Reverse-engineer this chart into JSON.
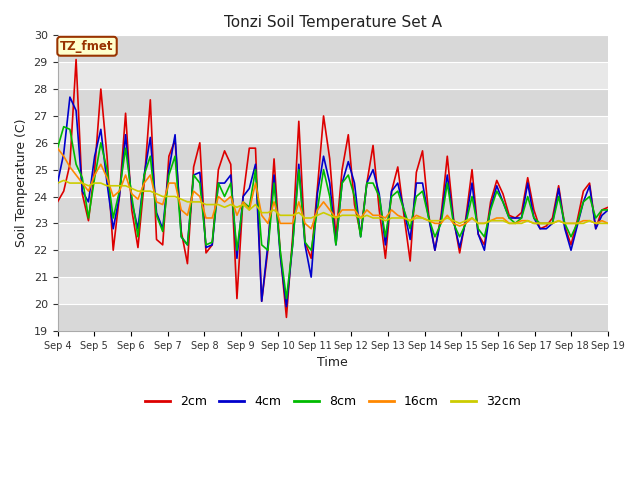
{
  "title": "Tonzi Soil Temperature Set A",
  "xlabel": "Time",
  "ylabel": "Soil Temperature (C)",
  "ylim": [
    19.0,
    30.0
  ],
  "yticks": [
    19.0,
    20.0,
    21.0,
    22.0,
    23.0,
    24.0,
    25.0,
    26.0,
    27.0,
    28.0,
    29.0,
    30.0
  ],
  "xtick_labels": [
    "Sep 4",
    "Sep 5",
    "Sep 6",
    "Sep 7",
    "Sep 8",
    "Sep 9",
    "Sep 10",
    "Sep 11",
    "Sep 12",
    "Sep 13",
    "Sep 14",
    "Sep 15",
    "Sep 16",
    "Sep 17",
    "Sep 18",
    "Sep 19"
  ],
  "label_box": "TZ_fmet",
  "label_box_facecolor": "#ffffcc",
  "label_box_edgecolor": "#993300",
  "plot_bg_color": "#e8e8e8",
  "band_color_dark": "#d8d8d8",
  "band_color_light": "#e8e8e8",
  "fig_bg_color": "#ffffff",
  "lines": {
    "2cm": {
      "color": "#dd0000",
      "linewidth": 1.2
    },
    "4cm": {
      "color": "#0000cc",
      "linewidth": 1.2
    },
    "8cm": {
      "color": "#00bb00",
      "linewidth": 1.2
    },
    "16cm": {
      "color": "#ff8800",
      "linewidth": 1.2
    },
    "32cm": {
      "color": "#cccc00",
      "linewidth": 1.2
    }
  },
  "data_2cm": [
    23.8,
    24.2,
    25.2,
    29.1,
    24.1,
    23.1,
    25.0,
    28.0,
    25.5,
    22.0,
    24.0,
    27.1,
    23.5,
    22.1,
    24.5,
    27.6,
    22.4,
    22.2,
    25.5,
    26.1,
    22.7,
    21.5,
    25.1,
    26.0,
    21.9,
    22.2,
    25.0,
    25.7,
    25.2,
    20.2,
    24.0,
    25.8,
    25.8,
    20.1,
    22.0,
    25.4,
    21.9,
    19.5,
    22.5,
    26.8,
    22.3,
    21.7,
    24.3,
    27.0,
    25.4,
    22.5,
    25.0,
    26.3,
    23.7,
    22.6,
    24.5,
    25.9,
    23.5,
    21.7,
    24.2,
    25.1,
    23.3,
    21.6,
    24.9,
    25.7,
    23.3,
    22.0,
    23.3,
    25.5,
    23.2,
    21.9,
    23.2,
    25.0,
    22.6,
    22.2,
    23.8,
    24.6,
    24.1,
    23.3,
    23.2,
    23.4,
    24.7,
    23.5,
    22.8,
    22.9,
    23.2,
    24.4,
    22.9,
    22.2,
    23.1,
    24.2,
    24.5,
    22.8,
    23.5,
    23.6
  ],
  "data_4cm": [
    24.5,
    25.6,
    27.7,
    27.2,
    24.2,
    23.8,
    25.5,
    26.5,
    24.5,
    22.8,
    24.0,
    26.3,
    23.8,
    22.8,
    24.8,
    26.2,
    23.4,
    22.8,
    25.0,
    26.3,
    22.5,
    22.2,
    24.8,
    24.9,
    22.1,
    22.2,
    24.5,
    24.5,
    24.8,
    21.7,
    24.0,
    24.3,
    25.2,
    20.1,
    22.2,
    24.8,
    21.8,
    19.9,
    22.2,
    25.2,
    22.2,
    21.0,
    24.1,
    25.5,
    24.5,
    22.2,
    24.5,
    25.3,
    24.5,
    22.5,
    24.5,
    25.0,
    24.1,
    22.2,
    24.2,
    24.5,
    23.5,
    22.4,
    24.5,
    24.5,
    23.2,
    22.0,
    23.2,
    24.8,
    23.1,
    22.1,
    23.1,
    24.5,
    22.6,
    22.0,
    23.6,
    24.4,
    23.8,
    23.2,
    23.2,
    23.2,
    24.5,
    23.2,
    22.8,
    22.8,
    23.0,
    24.3,
    22.8,
    22.0,
    22.9,
    23.8,
    24.4,
    22.8,
    23.3,
    23.5
  ],
  "data_8cm": [
    25.8,
    26.6,
    26.5,
    25.2,
    24.7,
    23.2,
    24.7,
    26.0,
    25.0,
    23.2,
    24.2,
    25.8,
    24.0,
    22.5,
    24.8,
    25.5,
    23.3,
    22.7,
    24.8,
    25.5,
    22.5,
    22.2,
    24.8,
    24.5,
    22.2,
    22.3,
    24.5,
    24.0,
    24.5,
    22.0,
    23.8,
    23.6,
    25.0,
    22.2,
    22.0,
    24.5,
    22.0,
    20.2,
    22.2,
    25.0,
    22.3,
    22.0,
    23.5,
    25.0,
    24.0,
    22.2,
    24.5,
    24.8,
    24.0,
    22.5,
    24.5,
    24.5,
    24.0,
    22.5,
    24.0,
    24.2,
    23.5,
    22.8,
    24.0,
    24.2,
    23.2,
    22.5,
    23.0,
    24.5,
    23.0,
    22.5,
    23.0,
    24.0,
    22.8,
    22.5,
    23.5,
    24.2,
    23.8,
    23.2,
    23.0,
    23.2,
    24.0,
    23.2,
    23.0,
    23.0,
    23.0,
    24.0,
    23.0,
    22.5,
    23.0,
    23.8,
    24.0,
    23.2,
    23.5,
    23.5
  ],
  "data_16cm": [
    25.8,
    25.5,
    25.1,
    24.8,
    24.5,
    24.2,
    24.8,
    25.2,
    24.7,
    24.0,
    24.2,
    24.8,
    24.1,
    23.9,
    24.5,
    24.8,
    23.8,
    23.7,
    24.5,
    24.5,
    23.5,
    23.3,
    24.2,
    24.0,
    23.2,
    23.2,
    24.0,
    23.8,
    24.0,
    23.3,
    23.8,
    23.5,
    24.5,
    23.3,
    23.0,
    23.8,
    23.0,
    23.0,
    23.0,
    23.8,
    23.0,
    22.8,
    23.5,
    23.8,
    23.5,
    23.2,
    23.5,
    23.5,
    23.5,
    23.2,
    23.5,
    23.3,
    23.3,
    23.2,
    23.5,
    23.3,
    23.2,
    23.1,
    23.3,
    23.2,
    23.1,
    23.0,
    23.0,
    23.3,
    23.0,
    22.9,
    23.0,
    23.2,
    23.0,
    23.0,
    23.1,
    23.2,
    23.2,
    23.0,
    23.0,
    23.1,
    23.1,
    23.0,
    23.0,
    23.0,
    23.0,
    23.1,
    23.0,
    23.0,
    23.0,
    23.1,
    23.1,
    23.0,
    23.1,
    23.0
  ],
  "data_32cm": [
    24.5,
    24.6,
    24.5,
    24.5,
    24.5,
    24.4,
    24.5,
    24.5,
    24.4,
    24.4,
    24.4,
    24.4,
    24.3,
    24.2,
    24.2,
    24.2,
    24.1,
    24.0,
    24.0,
    24.0,
    23.9,
    23.8,
    23.8,
    23.8,
    23.7,
    23.7,
    23.7,
    23.6,
    23.7,
    23.6,
    23.7,
    23.5,
    23.7,
    23.4,
    23.4,
    23.5,
    23.3,
    23.3,
    23.3,
    23.4,
    23.2,
    23.2,
    23.3,
    23.4,
    23.3,
    23.2,
    23.3,
    23.3,
    23.3,
    23.2,
    23.3,
    23.2,
    23.2,
    23.1,
    23.2,
    23.2,
    23.2,
    23.1,
    23.2,
    23.2,
    23.1,
    23.1,
    23.1,
    23.2,
    23.1,
    23.0,
    23.1,
    23.2,
    23.0,
    23.0,
    23.1,
    23.1,
    23.1,
    23.0,
    23.0,
    23.0,
    23.1,
    23.0,
    23.0,
    23.0,
    23.0,
    23.1,
    23.0,
    23.0,
    23.0,
    23.0,
    23.1,
    23.0,
    23.0,
    23.0
  ],
  "n_points": 90,
  "n_days": 15
}
